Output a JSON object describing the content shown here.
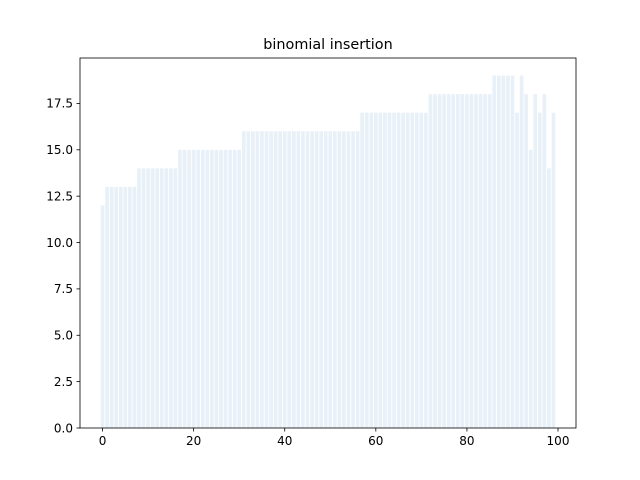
{
  "chart_data": {
    "type": "bar",
    "title": "binomial insertion",
    "xlabel": "",
    "ylabel": "",
    "x": [
      0,
      1,
      2,
      3,
      4,
      5,
      6,
      7,
      8,
      9,
      10,
      11,
      12,
      13,
      14,
      15,
      16,
      17,
      18,
      19,
      20,
      21,
      22,
      23,
      24,
      25,
      26,
      27,
      28,
      29,
      30,
      31,
      32,
      33,
      34,
      35,
      36,
      37,
      38,
      39,
      40,
      41,
      42,
      43,
      44,
      45,
      46,
      47,
      48,
      49,
      50,
      51,
      52,
      53,
      54,
      55,
      56,
      57,
      58,
      59,
      60,
      61,
      62,
      63,
      64,
      65,
      66,
      67,
      68,
      69,
      70,
      71,
      72,
      73,
      74,
      75,
      76,
      77,
      78,
      79,
      80,
      81,
      82,
      83,
      84,
      85,
      86,
      87,
      88,
      89,
      90,
      91,
      92,
      93,
      94,
      95,
      96,
      97,
      98,
      99
    ],
    "values": [
      12,
      13,
      13,
      13,
      13,
      13,
      13,
      13,
      14,
      14,
      14,
      14,
      14,
      14,
      14,
      14,
      14,
      15,
      15,
      15,
      15,
      15,
      15,
      15,
      15,
      15,
      15,
      15,
      15,
      15,
      15,
      16,
      16,
      16,
      16,
      16,
      16,
      16,
      16,
      16,
      16,
      16,
      16,
      16,
      16,
      16,
      16,
      16,
      16,
      16,
      16,
      16,
      16,
      16,
      16,
      16,
      16,
      17,
      17,
      17,
      17,
      17,
      17,
      17,
      17,
      17,
      17,
      17,
      17,
      17,
      17,
      17,
      18,
      18,
      18,
      18,
      18,
      18,
      18,
      18,
      18,
      18,
      18,
      18,
      18,
      18,
      19,
      19,
      19,
      19,
      19,
      17,
      19,
      18,
      15,
      18,
      17,
      18,
      14,
      17
    ],
    "xlim": [
      -4.95,
      103.95
    ],
    "ylim": [
      0,
      19.95
    ],
    "xticks": [
      "0",
      "20",
      "40",
      "60",
      "80",
      "100"
    ],
    "yticks": [
      "0.0",
      "2.5",
      "5.0",
      "7.5",
      "10.0",
      "12.5",
      "15.0",
      "17.5"
    ],
    "bar_color": "#e8f0f8",
    "grid": false,
    "legend": "none"
  }
}
